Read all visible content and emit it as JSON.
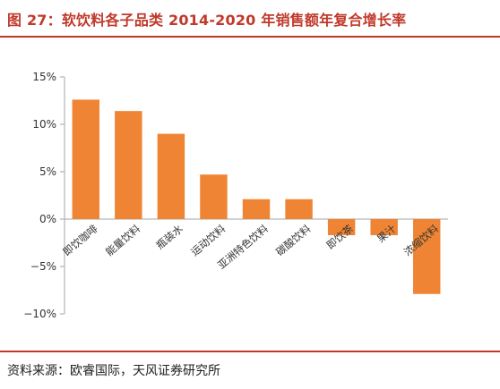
{
  "title": "图 27：软饮料各子品类 2014-2020 年销售额年复合增长率",
  "source": "资料来源：欧睿国际，天风证券研究所",
  "colors": {
    "accent": "#c0392b",
    "bar": "#ef8534",
    "axis": "#a6a6a6",
    "text": "#333333"
  },
  "chart_data": {
    "type": "bar",
    "categories": [
      "即饮咖啡",
      "能量饮料",
      "瓶装水",
      "运动饮料",
      "亚洲特色饮料",
      "碳酸饮料",
      "即饮茶",
      "果汁",
      "浓缩饮料"
    ],
    "values": [
      12.6,
      11.4,
      9.0,
      4.7,
      2.1,
      2.1,
      -1.7,
      -1.7,
      -7.9
    ],
    "ylim": [
      -10,
      15
    ],
    "yticks": [
      -10,
      -5,
      0,
      5,
      10,
      15
    ],
    "ytick_labels": [
      "−10%",
      "−5%",
      "0%",
      "5%",
      "10%",
      "15%"
    ],
    "unit": "%",
    "grid": false,
    "legend": "none"
  }
}
